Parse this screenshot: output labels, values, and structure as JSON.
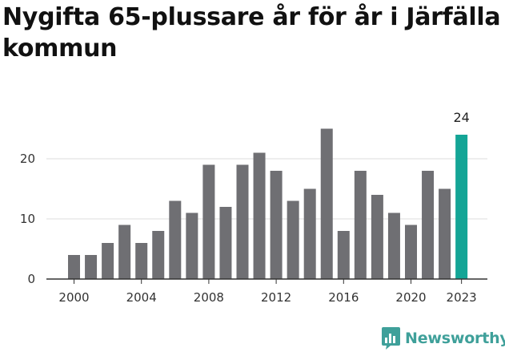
{
  "title": "Nygifta 65-plussare år för år i Järfälla kommun",
  "brand": {
    "name": "Newsworthy",
    "icon": "newsworthy-logo-icon"
  },
  "colors": {
    "bar": "#6f6f73",
    "highlight": "#14a596",
    "grid": "#dddddd",
    "axis": "#333333"
  },
  "chart_data": {
    "type": "bar",
    "title": "Nygifta 65-plussare år för år i Järfälla kommun",
    "xlabel": "",
    "ylabel": "",
    "categories": [
      2000,
      2001,
      2002,
      2003,
      2004,
      2005,
      2006,
      2007,
      2008,
      2009,
      2010,
      2011,
      2012,
      2013,
      2014,
      2015,
      2016,
      2017,
      2018,
      2019,
      2020,
      2021,
      2022,
      2023
    ],
    "values": [
      4,
      4,
      6,
      9,
      6,
      8,
      13,
      11,
      19,
      12,
      19,
      21,
      18,
      13,
      15,
      25,
      8,
      18,
      14,
      11,
      9,
      18,
      15,
      24
    ],
    "highlight": {
      "category": 2023,
      "label": "24"
    },
    "ylim": [
      0,
      27
    ],
    "yticks": [
      0,
      10,
      20
    ],
    "ytick_labels": [
      "0",
      "10",
      "20"
    ],
    "xticks": [
      2000,
      2004,
      2008,
      2012,
      2016,
      2020,
      2023
    ],
    "xtick_labels": [
      "2000",
      "2004",
      "2008",
      "2012",
      "2016",
      "2020",
      "2023"
    ],
    "grid": true,
    "legend": "none"
  }
}
